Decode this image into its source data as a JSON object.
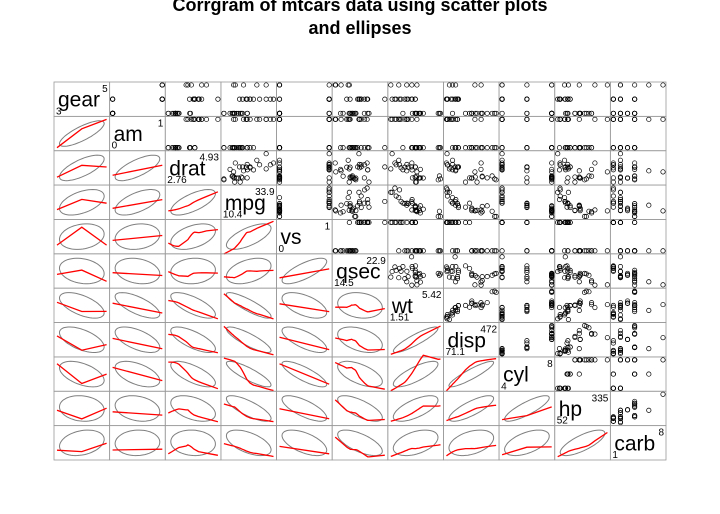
{
  "chart_data": {
    "type": "scatter",
    "title": "Corrgram of mtcars data using scatter plots\nand ellipses",
    "variables": [
      {
        "name": "gear",
        "min": "3",
        "max": "5"
      },
      {
        "name": "am",
        "min": "0",
        "max": "1"
      },
      {
        "name": "drat",
        "min": "2.76",
        "max": "4.93"
      },
      {
        "name": "mpg",
        "min": "10.4",
        "max": "33.9"
      },
      {
        "name": "vs",
        "min": "0",
        "max": "1"
      },
      {
        "name": "qsec",
        "min": "14.5",
        "max": "22.9"
      },
      {
        "name": "wt",
        "min": "1.51",
        "max": "5.42"
      },
      {
        "name": "disp",
        "min": "71.1",
        "max": "472"
      },
      {
        "name": "cyl",
        "min": "4",
        "max": "8"
      },
      {
        "name": "hp",
        "min": "52",
        "max": "335"
      },
      {
        "name": "carb",
        "min": "1",
        "max": "8"
      }
    ],
    "data": {
      "mpg": [
        21,
        21,
        22.8,
        21.4,
        18.7,
        18.1,
        14.3,
        24.4,
        22.8,
        19.2,
        17.8,
        16.4,
        17.3,
        15.2,
        10.4,
        10.4,
        14.7,
        32.4,
        30.4,
        33.9,
        21.5,
        15.5,
        15.2,
        13.3,
        19.2,
        27.3,
        26,
        30.4,
        15.8,
        19.7,
        15,
        21.4
      ],
      "cyl": [
        6,
        6,
        4,
        6,
        8,
        6,
        8,
        4,
        4,
        6,
        6,
        8,
        8,
        8,
        8,
        8,
        8,
        4,
        4,
        4,
        4,
        8,
        8,
        8,
        8,
        4,
        4,
        4,
        8,
        6,
        8,
        4
      ],
      "disp": [
        160,
        160,
        108,
        258,
        360,
        225,
        360,
        146.7,
        140.8,
        167.6,
        167.6,
        275.8,
        275.8,
        275.8,
        472,
        460,
        440,
        78.7,
        75.7,
        71.1,
        120.1,
        318,
        304,
        350,
        400,
        79,
        120.3,
        95.1,
        351,
        145,
        301,
        121
      ],
      "hp": [
        110,
        110,
        93,
        110,
        175,
        105,
        245,
        62,
        95,
        123,
        123,
        180,
        180,
        180,
        205,
        215,
        230,
        66,
        52,
        65,
        97,
        150,
        150,
        245,
        175,
        66,
        91,
        113,
        264,
        175,
        335,
        109
      ],
      "drat": [
        3.9,
        3.9,
        3.85,
        3.08,
        3.15,
        2.76,
        3.21,
        3.69,
        3.92,
        3.92,
        3.92,
        3.07,
        3.07,
        3.07,
        2.93,
        3,
        3.23,
        4.08,
        4.93,
        4.22,
        3.7,
        2.76,
        3.15,
        3.73,
        3.08,
        4.08,
        4.43,
        3.77,
        4.22,
        3.62,
        3.54,
        4.11
      ],
      "wt": [
        2.62,
        2.875,
        2.32,
        3.215,
        3.44,
        3.46,
        3.57,
        3.19,
        3.15,
        3.44,
        3.44,
        4.07,
        3.73,
        3.78,
        5.25,
        5.424,
        5.345,
        2.2,
        1.615,
        1.835,
        2.465,
        3.52,
        3.435,
        3.84,
        3.845,
        1.935,
        2.14,
        1.513,
        3.17,
        2.77,
        3.57,
        2.78
      ],
      "qsec": [
        16.46,
        17.02,
        18.61,
        19.44,
        17.02,
        20.22,
        15.84,
        20,
        22.9,
        18.3,
        18.9,
        17.4,
        17.6,
        18,
        17.98,
        17.82,
        17.42,
        19.47,
        18.52,
        19.9,
        20.01,
        16.87,
        17.3,
        15.41,
        17.05,
        18.9,
        16.7,
        16.9,
        14.5,
        15.5,
        14.6,
        18.6
      ],
      "vs": [
        0,
        0,
        1,
        1,
        0,
        1,
        0,
        1,
        1,
        1,
        1,
        0,
        0,
        0,
        0,
        0,
        0,
        1,
        1,
        1,
        1,
        0,
        0,
        0,
        0,
        1,
        0,
        1,
        0,
        0,
        0,
        1
      ],
      "am": [
        1,
        1,
        1,
        0,
        0,
        0,
        0,
        0,
        0,
        0,
        0,
        0,
        0,
        0,
        0,
        0,
        0,
        1,
        1,
        1,
        0,
        0,
        0,
        0,
        0,
        1,
        1,
        1,
        1,
        1,
        1,
        1
      ],
      "gear": [
        4,
        4,
        4,
        3,
        3,
        3,
        3,
        4,
        4,
        4,
        4,
        3,
        3,
        3,
        3,
        3,
        3,
        4,
        4,
        4,
        3,
        3,
        3,
        3,
        3,
        4,
        5,
        5,
        5,
        5,
        5,
        4
      ],
      "carb": [
        4,
        4,
        1,
        1,
        2,
        1,
        4,
        2,
        2,
        4,
        4,
        3,
        3,
        3,
        4,
        4,
        4,
        1,
        2,
        1,
        1,
        2,
        2,
        4,
        2,
        1,
        2,
        2,
        4,
        6,
        8,
        2
      ]
    },
    "lower_panel": "ellipse",
    "upper_panel": "points",
    "colors": {
      "smooth_line": "#ff0000",
      "ellipse": "#7f7f7f",
      "points": "#000000",
      "border": "#999999"
    }
  }
}
